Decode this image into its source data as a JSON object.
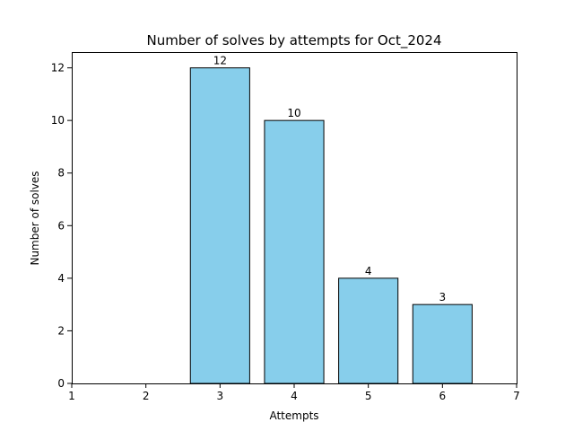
{
  "chart_data": {
    "type": "bar",
    "title": "Number of solves by attempts for Oct_2024",
    "xlabel": "Attempts",
    "ylabel": "Number of solves",
    "x": [
      3,
      4,
      5,
      6
    ],
    "values": [
      12,
      10,
      4,
      3
    ],
    "data_labels": [
      "12",
      "10",
      "4",
      "3"
    ],
    "xlim": [
      1,
      7
    ],
    "ylim": [
      0,
      12.6
    ],
    "xticks": [
      1,
      2,
      3,
      4,
      5,
      6,
      7
    ],
    "xtick_labels": [
      "1",
      "2",
      "3",
      "4",
      "5",
      "6",
      "7"
    ],
    "yticks": [
      0,
      2,
      4,
      6,
      8,
      10,
      12
    ],
    "ytick_labels": [
      "0",
      "2",
      "4",
      "6",
      "8",
      "10",
      "12"
    ],
    "grid": false,
    "bar_color": "#87CEEB",
    "bar_edge_color": "#000000"
  }
}
